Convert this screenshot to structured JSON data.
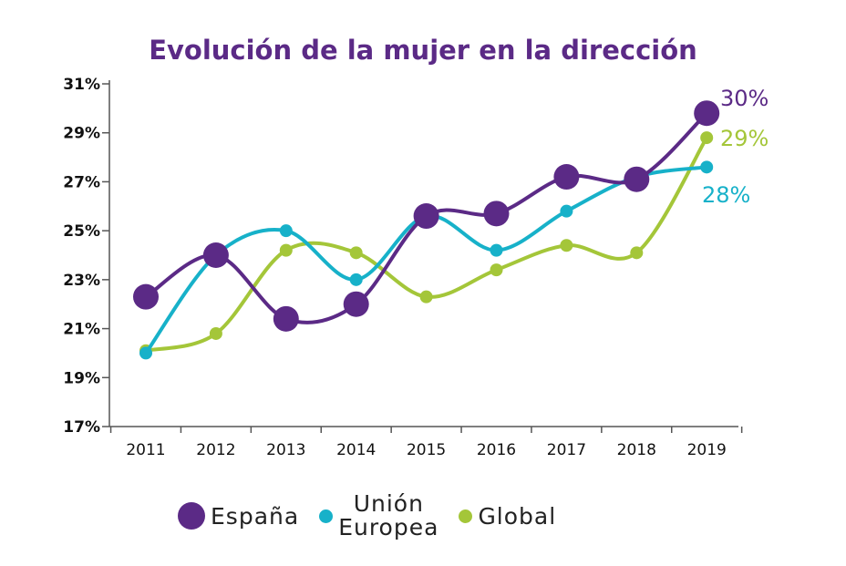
{
  "chart_data": {
    "type": "line",
    "title": "Evolución de la mujer en la dirección",
    "categories": [
      "2011",
      "2012",
      "2013",
      "2014",
      "2015",
      "2016",
      "2017",
      "2018",
      "2019"
    ],
    "ylim": [
      17,
      31
    ],
    "yticks": [
      "17%",
      "19%",
      "21%",
      "23%",
      "25%",
      "27%",
      "29%",
      "31%"
    ],
    "grid": false,
    "legend_placement": "bottom",
    "series": [
      {
        "name": "España",
        "color": "#5b2a86",
        "values": [
          22.3,
          24.0,
          21.4,
          22.0,
          25.6,
          25.7,
          27.2,
          27.1,
          29.8
        ],
        "end_label": "30%"
      },
      {
        "name": "Unión Europea",
        "name_line1": "Unión",
        "name_line2": "Europea",
        "color": "#17b1c9",
        "values": [
          20.0,
          24.0,
          25.0,
          23.0,
          25.6,
          24.2,
          25.8,
          27.2,
          27.6
        ],
        "end_label": "28%"
      },
      {
        "name": "Global",
        "color": "#a4c639",
        "values": [
          20.1,
          20.8,
          24.2,
          24.1,
          22.3,
          23.4,
          24.4,
          24.1,
          28.8
        ],
        "end_label": "29%"
      }
    ]
  }
}
